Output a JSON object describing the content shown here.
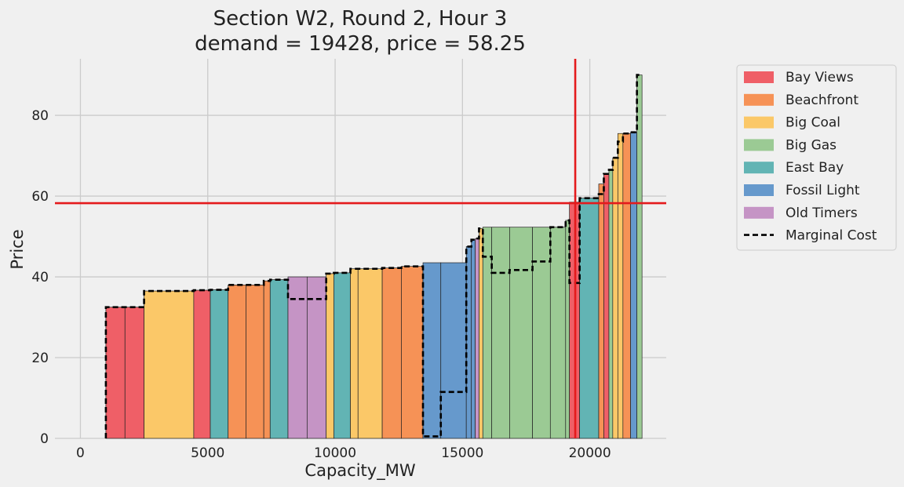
{
  "chart_data": {
    "type": "bar",
    "title": "Section W2, Round 2, Hour 3",
    "subtitle": "demand = 19428, price = 58.25",
    "xlabel": "Capacity_MW",
    "ylabel": "Price",
    "xlim": [
      -1000,
      23000
    ],
    "ylim": [
      0,
      94
    ],
    "xticks": [
      0,
      5000,
      10000,
      15000,
      20000
    ],
    "yticks": [
      0,
      20,
      40,
      60,
      80
    ],
    "grid": true,
    "legend_position": "outside-right-top",
    "demand": 19428,
    "price": 58.25,
    "demand_line_color": "#e41a1c",
    "price_line_color": "#e41a1c",
    "colors": {
      "Bay Views": "#ef5f67",
      "Beachfront": "#f69256",
      "Big Coal": "#fbc868",
      "Big Gas": "#9bca94",
      "East Bay": "#62b4b4",
      "Fossil Light": "#6699cc",
      "Old Timers": "#c594c5"
    },
    "legend": [
      "Bay Views",
      "Beachfront",
      "Big Coal",
      "Big Gas",
      "East Bay",
      "Fossil Light",
      "Old Timers",
      "Marginal Cost"
    ],
    "bars": [
      {
        "x0": 1000,
        "x1": 1750,
        "price": 32.5,
        "mc": 32.5,
        "portfolio": "Bay Views"
      },
      {
        "x0": 1750,
        "x1": 2500,
        "price": 32.5,
        "mc": 32.5,
        "portfolio": "Bay Views"
      },
      {
        "x0": 2500,
        "x1": 4450,
        "price": 36.5,
        "mc": 36.5,
        "portfolio": "Big Coal"
      },
      {
        "x0": 4450,
        "x1": 5100,
        "price": 36.7,
        "mc": 36.7,
        "portfolio": "Bay Views"
      },
      {
        "x0": 5100,
        "x1": 5800,
        "price": 36.8,
        "mc": 36.8,
        "portfolio": "East Bay"
      },
      {
        "x0": 5800,
        "x1": 6500,
        "price": 38.0,
        "mc": 38.0,
        "portfolio": "Beachfront"
      },
      {
        "x0": 6500,
        "x1": 7200,
        "price": 38.0,
        "mc": 38.0,
        "portfolio": "Beachfront"
      },
      {
        "x0": 7200,
        "x1": 7450,
        "price": 39.0,
        "mc": 39.0,
        "portfolio": "Beachfront"
      },
      {
        "x0": 7450,
        "x1": 8150,
        "price": 39.3,
        "mc": 39.3,
        "portfolio": "East Bay"
      },
      {
        "x0": 8150,
        "x1": 8900,
        "price": 40.0,
        "mc": 34.5,
        "portfolio": "Old Timers"
      },
      {
        "x0": 8900,
        "x1": 9650,
        "price": 40.0,
        "mc": 34.5,
        "portfolio": "Old Timers"
      },
      {
        "x0": 9650,
        "x1": 9950,
        "price": 40.8,
        "mc": 40.8,
        "portfolio": "Big Coal"
      },
      {
        "x0": 9950,
        "x1": 10600,
        "price": 41.0,
        "mc": 41.0,
        "portfolio": "East Bay"
      },
      {
        "x0": 10600,
        "x1": 10900,
        "price": 42.0,
        "mc": 42.0,
        "portfolio": "Big Coal"
      },
      {
        "x0": 10900,
        "x1": 11850,
        "price": 42.0,
        "mc": 42.0,
        "portfolio": "Big Coal"
      },
      {
        "x0": 11850,
        "x1": 12600,
        "price": 42.2,
        "mc": 42.2,
        "portfolio": "Beachfront"
      },
      {
        "x0": 12600,
        "x1": 13450,
        "price": 42.6,
        "mc": 42.6,
        "portfolio": "Beachfront"
      },
      {
        "x0": 13450,
        "x1": 14150,
        "price": 43.5,
        "mc": 0.5,
        "portfolio": "Fossil Light"
      },
      {
        "x0": 14150,
        "x1": 15150,
        "price": 43.5,
        "mc": 11.5,
        "portfolio": "Fossil Light"
      },
      {
        "x0": 15150,
        "x1": 15350,
        "price": 47.5,
        "mc": 47.5,
        "portfolio": "Fossil Light"
      },
      {
        "x0": 15350,
        "x1": 15500,
        "price": 49.2,
        "mc": 49.2,
        "portfolio": "Fossil Light"
      },
      {
        "x0": 15500,
        "x1": 15650,
        "price": 49.5,
        "mc": 49.5,
        "portfolio": "Old Timers"
      },
      {
        "x0": 15650,
        "x1": 15800,
        "price": 52.0,
        "mc": 52.0,
        "portfolio": "Big Coal"
      },
      {
        "x0": 15800,
        "x1": 16150,
        "price": 52.3,
        "mc": 45.0,
        "portfolio": "Big Gas"
      },
      {
        "x0": 16150,
        "x1": 16850,
        "price": 52.3,
        "mc": 41.0,
        "portfolio": "Big Gas"
      },
      {
        "x0": 16850,
        "x1": 17750,
        "price": 52.3,
        "mc": 41.7,
        "portfolio": "Big Gas"
      },
      {
        "x0": 17750,
        "x1": 18450,
        "price": 52.3,
        "mc": 43.8,
        "portfolio": "Big Gas"
      },
      {
        "x0": 18450,
        "x1": 19050,
        "price": 52.3,
        "mc": 52.3,
        "portfolio": "Big Gas"
      },
      {
        "x0": 19050,
        "x1": 19200,
        "price": 54.0,
        "mc": 54.0,
        "portfolio": "Big Gas"
      },
      {
        "x0": 19200,
        "x1": 19600,
        "price": 58.5,
        "mc": 38.5,
        "portfolio": "Bay Views"
      },
      {
        "x0": 19600,
        "x1": 20350,
        "price": 59.5,
        "mc": 59.5,
        "portfolio": "East Bay"
      },
      {
        "x0": 20350,
        "x1": 20550,
        "price": 63.0,
        "mc": 60.5,
        "portfolio": "Beachfront"
      },
      {
        "x0": 20550,
        "x1": 20750,
        "price": 65.5,
        "mc": 65.5,
        "portfolio": "Bay Views"
      },
      {
        "x0": 20750,
        "x1": 20900,
        "price": 66.5,
        "mc": 66.5,
        "portfolio": "Big Gas"
      },
      {
        "x0": 20900,
        "x1": 21100,
        "price": 69.5,
        "mc": 69.5,
        "portfolio": "Big Coal"
      },
      {
        "x0": 21100,
        "x1": 21300,
        "price": 75.5,
        "mc": 73.5,
        "portfolio": "Big Coal"
      },
      {
        "x0": 21300,
        "x1": 21600,
        "price": 75.5,
        "mc": 75.5,
        "portfolio": "Beachfront"
      },
      {
        "x0": 21600,
        "x1": 21850,
        "price": 75.8,
        "mc": 75.8,
        "portfolio": "Fossil Light"
      },
      {
        "x0": 21850,
        "x1": 22050,
        "price": 90.0,
        "mc": 90.0,
        "portfolio": "Big Gas"
      }
    ]
  }
}
